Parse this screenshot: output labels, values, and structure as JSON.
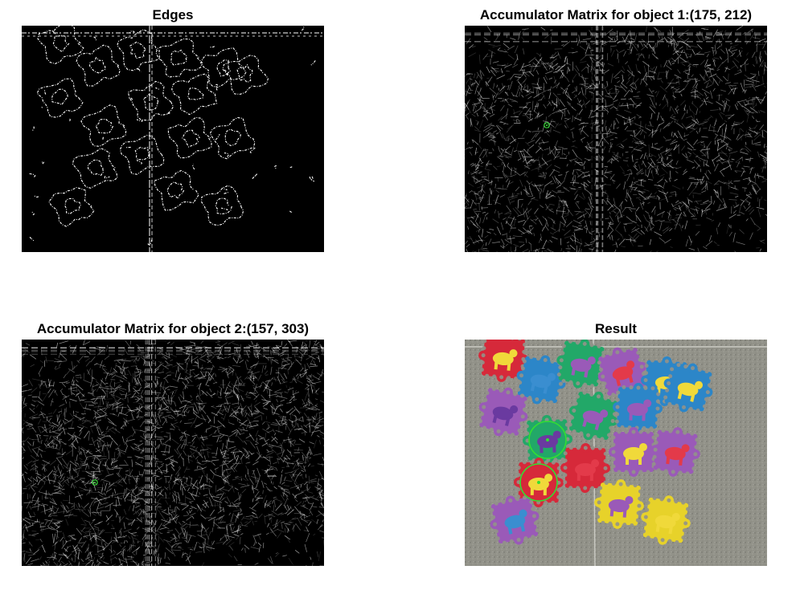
{
  "figure": {
    "panels": [
      {
        "title": "Edges"
      },
      {
        "title": "Accumulator Matrix for object 1:(175, 212)"
      },
      {
        "title": "Accumulator Matrix for object 2:(157, 303)"
      },
      {
        "title": "Result"
      }
    ]
  },
  "colors": {
    "background": "#000000",
    "edge": "#ffffff",
    "marker": "#33dd33",
    "floor": "#8f8f86"
  },
  "puzzle_tile_colors": [
    "#d6293a",
    "#2c86c8",
    "#22a868",
    "#9a5ab8",
    "#e7d22a"
  ]
}
